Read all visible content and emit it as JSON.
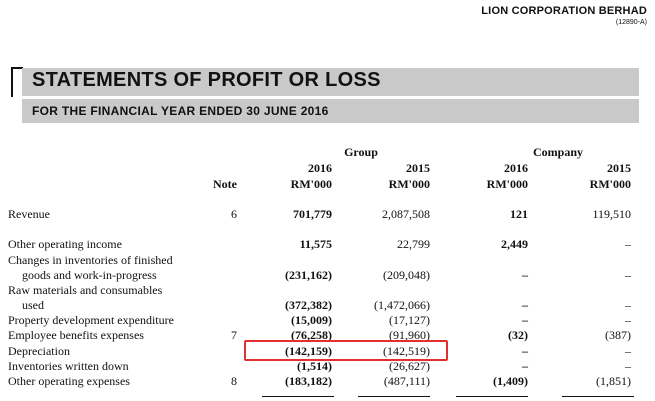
{
  "header": {
    "company": "LION CORPORATION BERHAD",
    "reg_no": "(12890-A)"
  },
  "statement": {
    "title": "STATEMENTS OF PROFIT OR LOSS",
    "subtitle": "FOR THE FINANCIAL YEAR ENDED 30 JUNE 2016"
  },
  "columns": {
    "group_label": "Group",
    "company_label": "Company",
    "note_label": "Note",
    "year_2016": "2016",
    "year_2015": "2015",
    "unit": "RM'000"
  },
  "rows": {
    "revenue": {
      "label": "Revenue",
      "note": "6",
      "g2016": "701,779",
      "g2015": "2,087,508",
      "c2016": "121",
      "c2015": "119,510"
    },
    "other_income": {
      "label": "Other operating income",
      "g2016": "11,575",
      "g2015": "22,799",
      "c2016": "2,449",
      "c2015": "–"
    },
    "inventories_change": {
      "label1": "Changes in inventories of finished",
      "label2": "goods and work-in-progress",
      "g2016": "(231,162)",
      "g2015": "(209,048)",
      "c2016": "–",
      "c2015": "–"
    },
    "raw_materials": {
      "label1": "Raw materials and consumables",
      "label2": "used",
      "g2016": "(372,382)",
      "g2015": "(1,472,066)",
      "c2016": "–",
      "c2015": "–"
    },
    "property_dev": {
      "label": "Property development expenditure",
      "g2016": "(15,009)",
      "g2015": "(17,127)",
      "c2016": "–",
      "c2015": "–"
    },
    "employee": {
      "label": "Employee benefits expenses",
      "note": "7",
      "g2016": "(76,258)",
      "g2015": "(91,960)",
      "c2016": "(32)",
      "c2015": "(387)"
    },
    "depreciation": {
      "label": "Depreciation",
      "g2016": "(142,159)",
      "g2015": "(142,519)",
      "c2016": "–",
      "c2015": "–"
    },
    "inventories_wd": {
      "label": "Inventories written down",
      "g2016": "(1,514)",
      "g2015": "(26,627)",
      "c2016": "–",
      "c2015": "–"
    },
    "other_expenses": {
      "label": "Other operating expenses",
      "note": "8",
      "g2016": "(183,182)",
      "g2015": "(487,111)",
      "c2016": "(1,409)",
      "c2015": "(1,851)"
    }
  }
}
